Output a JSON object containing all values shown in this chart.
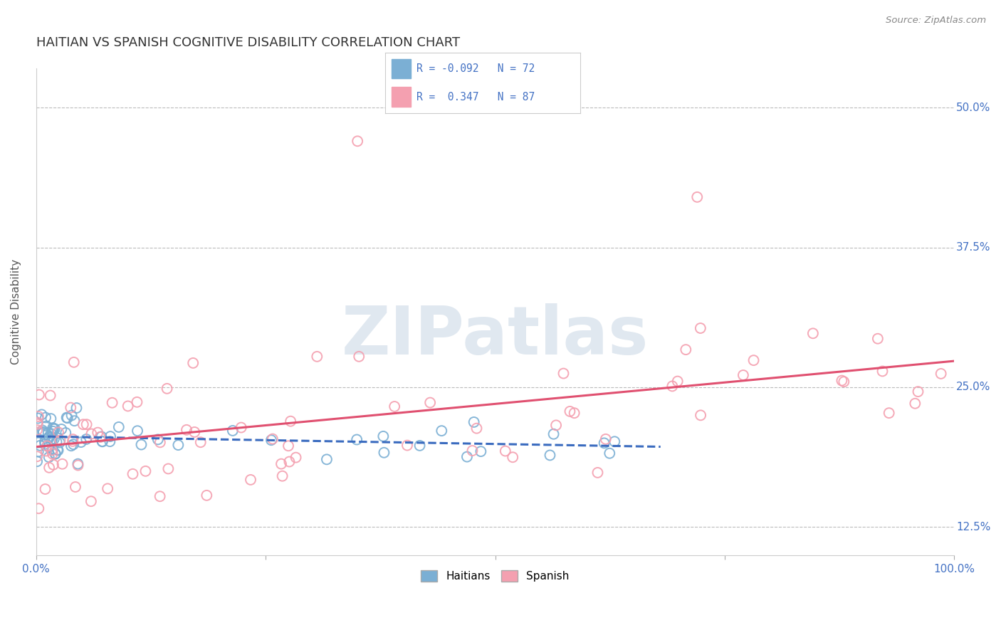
{
  "title": "HAITIAN VS SPANISH COGNITIVE DISABILITY CORRELATION CHART",
  "source": "Source: ZipAtlas.com",
  "ylabel": "Cognitive Disability",
  "ytick_labels": [
    "12.5%",
    "25.0%",
    "37.5%",
    "50.0%"
  ],
  "ytick_values": [
    0.125,
    0.25,
    0.375,
    0.5
  ],
  "xlim": [
    0.0,
    1.0
  ],
  "ylim": [
    0.1,
    0.535
  ],
  "haitian_R": -0.092,
  "haitian_N": 72,
  "spanish_R": 0.347,
  "spanish_N": 87,
  "haitian_color": "#7bafd4",
  "spanish_color": "#f4a0b0",
  "haitian_line_color": "#3a6bbf",
  "spanish_line_color": "#e05070",
  "legend_label_haitian": "Haitians",
  "legend_label_spanish": "Spanish",
  "title_fontsize": 13,
  "legend_text_color": "#4472c4",
  "source_color": "#888888",
  "ytick_color": "#4472c4",
  "xtick_color": "#4472c4",
  "grid_color": "#bbbbbb",
  "ylabel_color": "#555555",
  "watermark": "ZIPatlas",
  "watermark_color": "#e0e8f0"
}
